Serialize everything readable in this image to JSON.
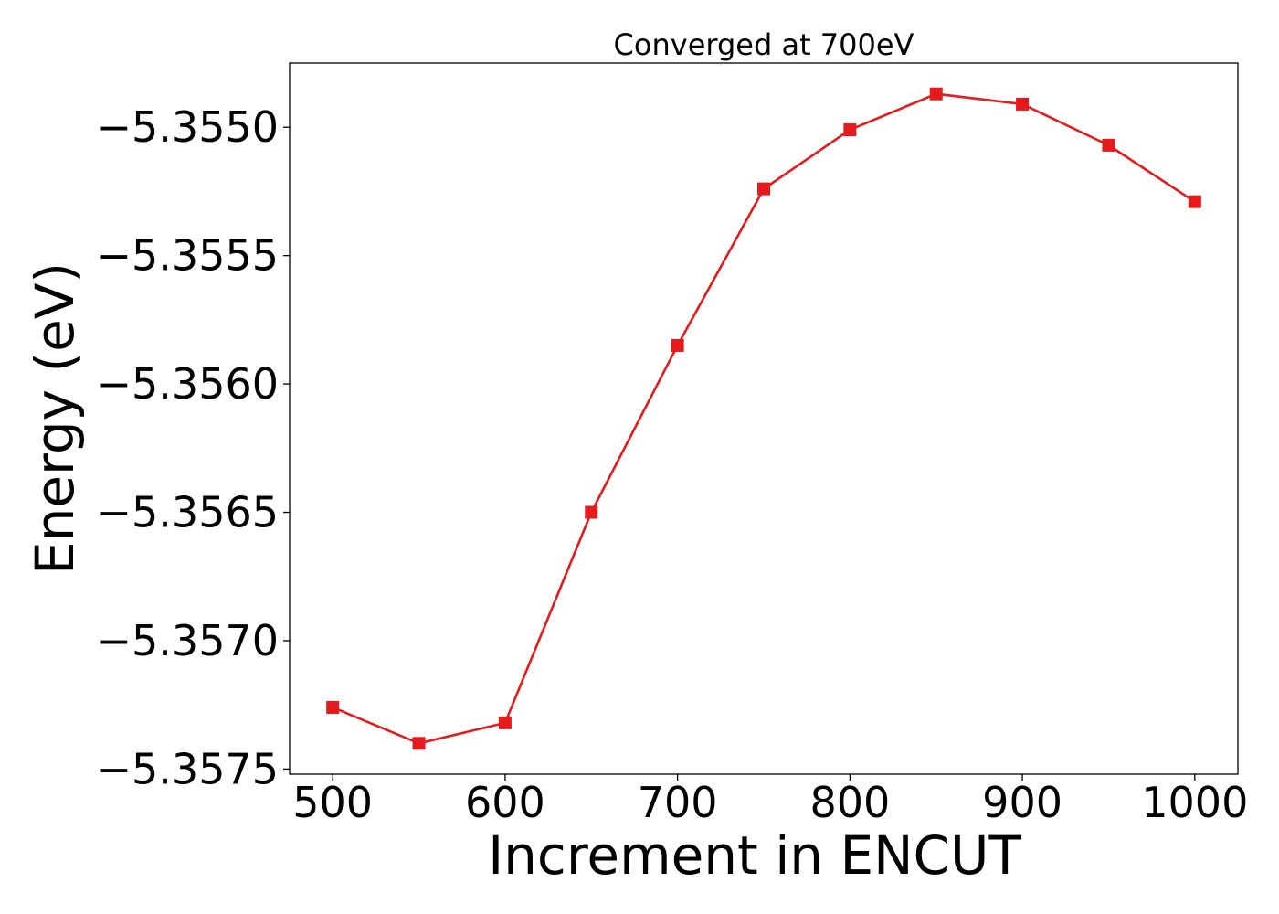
{
  "chart_data": {
    "type": "line",
    "title": "Converged at 700eV",
    "xlabel": "Increment in ENCUT",
    "ylabel": "Energy (eV)",
    "x": [
      500,
      550,
      600,
      650,
      700,
      750,
      800,
      850,
      900,
      950,
      1000
    ],
    "series": [
      {
        "values": [
          -5.35726,
          -5.3574,
          -5.35732,
          -5.3565,
          -5.35585,
          -5.35524,
          -5.35501,
          -5.35487,
          -5.35491,
          -5.35507,
          -5.35529
        ],
        "color": "#e41a1c",
        "marker": "square"
      }
    ],
    "xticks": [
      500,
      600,
      700,
      800,
      900,
      1000
    ],
    "xtick_labels": [
      "500",
      "600",
      "700",
      "800",
      "900",
      "1000"
    ],
    "yticks": [
      -5.355,
      -5.3555,
      -5.356,
      -5.3565,
      -5.357,
      -5.3575
    ],
    "ytick_labels": [
      "−5.3550",
      "−5.3555",
      "−5.3560",
      "−5.3565",
      "−5.3570",
      "−5.3575"
    ],
    "xlim": [
      475,
      1025
    ],
    "ylim": [
      -5.35752,
      -5.35475
    ],
    "grid": false,
    "legend": "none"
  }
}
